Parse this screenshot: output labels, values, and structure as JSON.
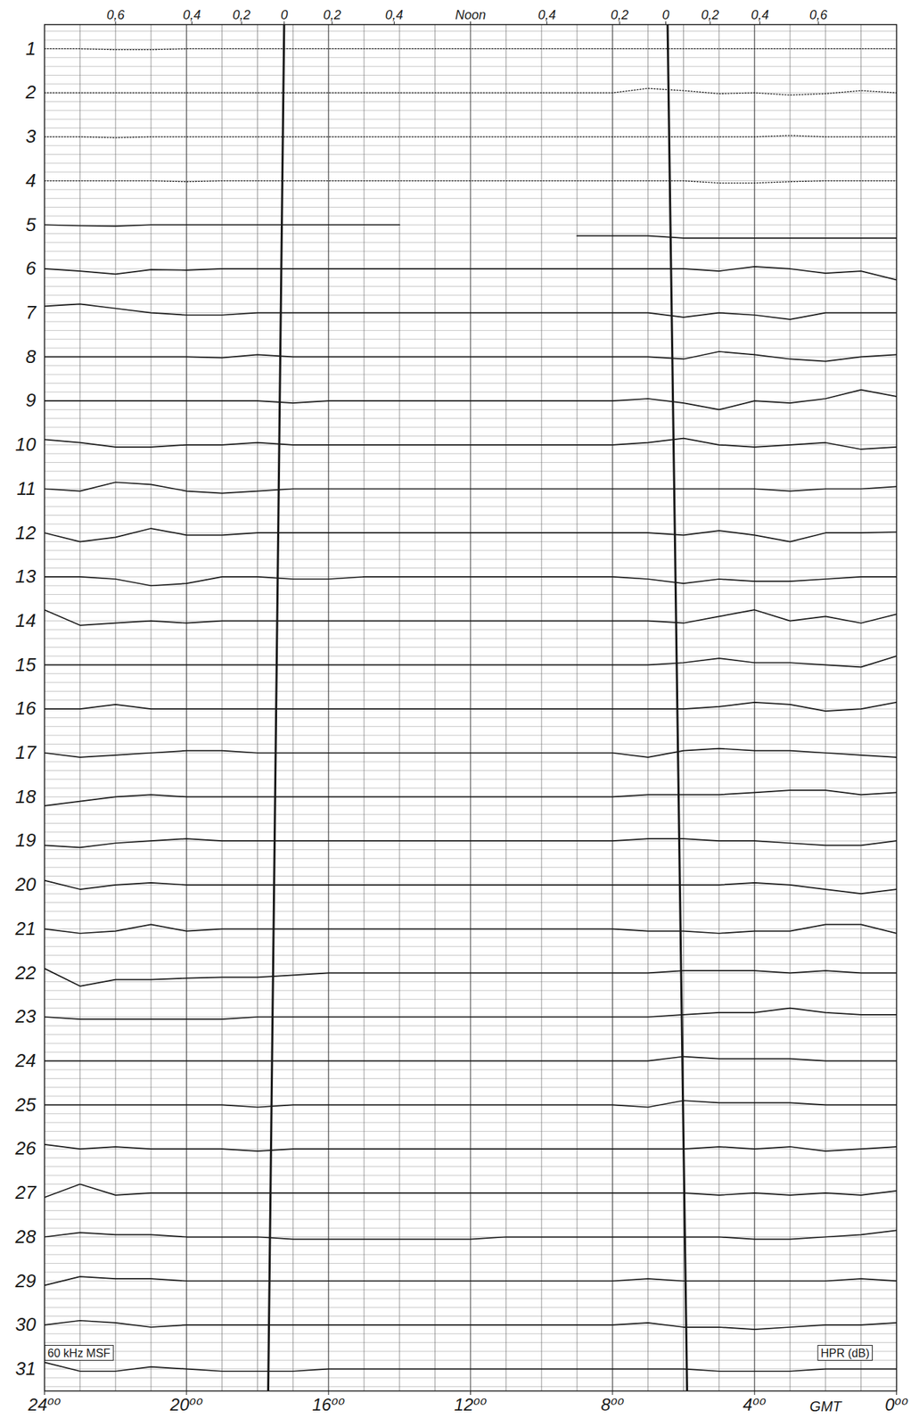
{
  "chart_data": {
    "type": "line",
    "x_label": "GMT",
    "color": "#1a1a1a",
    "grid": true,
    "xlim": [
      24,
      0
    ],
    "xticks": [
      {
        "value": 24,
        "label": "24⁰⁰"
      },
      {
        "value": 20,
        "label": "20⁰⁰"
      },
      {
        "value": 16,
        "label": "16⁰⁰"
      },
      {
        "value": 12,
        "label": "12⁰⁰"
      },
      {
        "value": 8,
        "label": "8⁰⁰"
      },
      {
        "value": 4,
        "label": "4⁰⁰"
      },
      {
        "value": 0,
        "label": "0⁰⁰"
      }
    ],
    "x2ticks": [
      {
        "value": 22.0,
        "label": "0,6"
      },
      {
        "value": 19.85,
        "label": "0,4"
      },
      {
        "value": 18.45,
        "label": "0,2"
      },
      {
        "value": 17.25,
        "label": "0"
      },
      {
        "value": 15.9,
        "label": "0,2"
      },
      {
        "value": 14.15,
        "label": "0,4"
      },
      {
        "value": 12.0,
        "label": "Noon"
      },
      {
        "value": 9.85,
        "label": "0,4"
      },
      {
        "value": 7.8,
        "label": "0,2"
      },
      {
        "value": 6.5,
        "label": "0"
      },
      {
        "value": 5.25,
        "label": "0,2"
      },
      {
        "value": 3.85,
        "label": "0,4"
      },
      {
        "value": 2.2,
        "label": "0,6"
      }
    ],
    "ylim": [
      31.5,
      0.45
    ],
    "yticks": [
      1,
      2,
      3,
      4,
      5,
      6,
      7,
      8,
      9,
      10,
      11,
      12,
      13,
      14,
      15,
      16,
      17,
      18,
      19,
      20,
      21,
      22,
      23,
      24,
      25,
      26,
      27,
      28,
      29,
      30,
      31
    ],
    "terminators": [
      {
        "x": [
          17.25,
          17.7
        ],
        "y": [
          0.45,
          31.5
        ]
      },
      {
        "x": [
          6.45,
          5.9
        ],
        "y": [
          0.45,
          31.5
        ]
      }
    ],
    "annotations": [
      {
        "text": "60 kHz MSF",
        "x": 23.03,
        "y": 30.64
      },
      {
        "text": "HPR (dB)",
        "x": 1.45,
        "y": 30.64
      }
    ],
    "x": [
      24,
      23,
      22,
      21,
      20,
      19,
      18,
      17,
      16,
      15,
      14,
      13,
      12,
      11,
      10,
      9,
      8,
      7,
      6,
      5,
      4,
      3,
      2,
      1,
      0
    ],
    "series": [
      {
        "name": "1",
        "color": "#1a1a1a",
        "line_style": "dotted",
        "values": [
          1,
          1,
          1.02,
          1.02,
          1,
          1,
          1,
          1,
          1,
          1,
          1,
          1,
          1,
          1,
          1,
          1,
          1,
          1,
          1,
          1,
          1,
          1,
          1,
          1,
          1
        ]
      },
      {
        "name": "2",
        "color": "#1a1a1a",
        "line_style": "dotted",
        "values": [
          2,
          2,
          2,
          2,
          2,
          2,
          2,
          2,
          2,
          2,
          2,
          2,
          2,
          2,
          2,
          2,
          2,
          1.9,
          1.95,
          2.02,
          2,
          2.05,
          2.02,
          1.95,
          2
        ]
      },
      {
        "name": "3",
        "color": "#1a1a1a",
        "line_style": "dotted",
        "values": [
          3,
          3,
          3.02,
          3,
          3,
          3,
          3,
          3,
          3,
          3,
          3,
          3,
          3,
          3,
          3,
          3,
          3,
          3,
          3,
          3,
          3,
          2.97,
          3,
          3,
          3
        ]
      },
      {
        "name": "4",
        "color": "#1a1a1a",
        "line_style": "dotted",
        "values": [
          4,
          4,
          4,
          4,
          4.02,
          4,
          4,
          4,
          4,
          4,
          4,
          4,
          4,
          4,
          4,
          4,
          4,
          4,
          4,
          4.05,
          4.05,
          4.02,
          4,
          4,
          4
        ]
      },
      {
        "name": "5",
        "color": "#1a1a1a",
        "line_style": "solid",
        "values": [
          5,
          5.02,
          5.03,
          5,
          5,
          5,
          5,
          5,
          5,
          5,
          5,
          null,
          null,
          null,
          null,
          5.25,
          5.25,
          5.25,
          5.3,
          5.3,
          5.3,
          5.3,
          5.3,
          5.3,
          5.3
        ]
      },
      {
        "name": "6",
        "color": "#1a1a1a",
        "line_style": "solid",
        "values": [
          6,
          6.05,
          6.12,
          6.02,
          6.03,
          6,
          6,
          6,
          6,
          6,
          6,
          6,
          6,
          6,
          6,
          6,
          6,
          6,
          6,
          6.05,
          5.95,
          6,
          6.1,
          6.05,
          6.25
        ]
      },
      {
        "name": "7",
        "color": "#1a1a1a",
        "line_style": "solid",
        "values": [
          6.85,
          6.8,
          6.9,
          7,
          7.05,
          7.05,
          7,
          7,
          7,
          7,
          7,
          7,
          7,
          7,
          7,
          7,
          7,
          7,
          7.1,
          7,
          7.05,
          7.15,
          7,
          7,
          7
        ]
      },
      {
        "name": "8",
        "color": "#1a1a1a",
        "line_style": "solid",
        "values": [
          8,
          8,
          8,
          8,
          8,
          8.02,
          7.95,
          8,
          8,
          8,
          8,
          8,
          8,
          8,
          8,
          8,
          8,
          8,
          8.05,
          7.88,
          7.95,
          8.05,
          8.1,
          8,
          7.95
        ]
      },
      {
        "name": "9",
        "color": "#1a1a1a",
        "line_style": "solid",
        "values": [
          9,
          9,
          9,
          9,
          9,
          9,
          9,
          9.05,
          9,
          9,
          9,
          9,
          9,
          9,
          9,
          9,
          9,
          8.95,
          9.05,
          9.2,
          9,
          9.05,
          8.95,
          8.75,
          8.9
        ]
      },
      {
        "name": "10",
        "color": "#1a1a1a",
        "line_style": "solid",
        "values": [
          9.88,
          9.95,
          10.05,
          10.05,
          10,
          10,
          9.95,
          10,
          10,
          10,
          10,
          10,
          10,
          10,
          10,
          10,
          10,
          9.95,
          9.85,
          10,
          10.05,
          10,
          9.95,
          10.1,
          10.05
        ]
      },
      {
        "name": "11",
        "color": "#1a1a1a",
        "line_style": "solid",
        "values": [
          11,
          11.05,
          10.85,
          10.9,
          11.05,
          11.1,
          11.05,
          11,
          11,
          11,
          11,
          11,
          11,
          11,
          11,
          11,
          11,
          11,
          11,
          11,
          11,
          11.05,
          11,
          11,
          10.95
        ]
      },
      {
        "name": "12",
        "color": "#1a1a1a",
        "line_style": "solid",
        "values": [
          12,
          12.2,
          12.1,
          11.9,
          12.05,
          12.05,
          12,
          12,
          12,
          12,
          12,
          12,
          12,
          12,
          12,
          12,
          12,
          12,
          12.05,
          11.95,
          12.05,
          12.2,
          12,
          12,
          11.98
        ]
      },
      {
        "name": "13",
        "color": "#1a1a1a",
        "line_style": "solid",
        "values": [
          13,
          13,
          13.05,
          13.2,
          13.15,
          13,
          13,
          13.05,
          13.05,
          13,
          13,
          13,
          13,
          13,
          13,
          13,
          13,
          13.05,
          13.15,
          13.05,
          13.1,
          13.1,
          13.05,
          13,
          13
        ]
      },
      {
        "name": "14",
        "color": "#1a1a1a",
        "line_style": "solid",
        "values": [
          13.75,
          14.1,
          14.05,
          14,
          14.05,
          14,
          14,
          14,
          14,
          14,
          14,
          14,
          14,
          14,
          14,
          14,
          14,
          14,
          14.05,
          13.9,
          13.75,
          14,
          13.9,
          14.05,
          13.85
        ]
      },
      {
        "name": "15",
        "color": "#1a1a1a",
        "line_style": "solid",
        "values": [
          15,
          15,
          15,
          15,
          15,
          15,
          15,
          15,
          15,
          15,
          15,
          15,
          15,
          15,
          15,
          15,
          15,
          15,
          14.95,
          14.85,
          14.95,
          14.95,
          15,
          15.05,
          14.8
        ]
      },
      {
        "name": "16",
        "color": "#1a1a1a",
        "line_style": "solid",
        "values": [
          16,
          16,
          15.9,
          16,
          16,
          16,
          16,
          16,
          16,
          16,
          16,
          16,
          16,
          16,
          16,
          16,
          16,
          16,
          16,
          15.95,
          15.85,
          15.9,
          16.05,
          16,
          15.85
        ]
      },
      {
        "name": "17",
        "color": "#1a1a1a",
        "line_style": "solid",
        "values": [
          17,
          17.1,
          17.05,
          17,
          16.95,
          16.95,
          17,
          17,
          17,
          17,
          17,
          17,
          17,
          17,
          17,
          17,
          17,
          17.1,
          16.95,
          16.9,
          16.95,
          16.95,
          17,
          17.05,
          17.1
        ]
      },
      {
        "name": "18",
        "color": "#1a1a1a",
        "line_style": "solid",
        "values": [
          18.2,
          18.1,
          18,
          17.95,
          18,
          18,
          18,
          18,
          18,
          18,
          18,
          18,
          18,
          18,
          18,
          18,
          18,
          17.95,
          17.95,
          17.95,
          17.9,
          17.85,
          17.85,
          17.95,
          17.9
        ]
      },
      {
        "name": "19",
        "color": "#1a1a1a",
        "line_style": "solid",
        "values": [
          19.1,
          19.15,
          19.05,
          19,
          18.95,
          19,
          19,
          19,
          19,
          19,
          19,
          19,
          19,
          19,
          19,
          19,
          19,
          18.95,
          18.95,
          19,
          19,
          19.05,
          19.1,
          19.1,
          19
        ]
      },
      {
        "name": "20",
        "color": "#1a1a1a",
        "line_style": "solid",
        "values": [
          19.9,
          20.1,
          20,
          19.95,
          20,
          20,
          20,
          20,
          20,
          20,
          20,
          20,
          20,
          20,
          20,
          20,
          20,
          20,
          20,
          20,
          19.95,
          20,
          20.1,
          20.2,
          20.1
        ]
      },
      {
        "name": "21",
        "color": "#1a1a1a",
        "line_style": "solid",
        "values": [
          21,
          21.1,
          21.05,
          20.9,
          21.05,
          21,
          21,
          21,
          21,
          21,
          21,
          21,
          21,
          21,
          21,
          21,
          21,
          21.05,
          21.05,
          21.1,
          21.05,
          21.05,
          20.9,
          20.9,
          21.1
        ]
      },
      {
        "name": "22",
        "color": "#1a1a1a",
        "line_style": "solid",
        "values": [
          21.9,
          22.3,
          22.15,
          22.15,
          22.12,
          22.1,
          22.1,
          22.05,
          22,
          22,
          22,
          22,
          22,
          22,
          22,
          22,
          22,
          22,
          21.95,
          21.95,
          21.95,
          22,
          21.95,
          22,
          22
        ]
      },
      {
        "name": "23",
        "color": "#1a1a1a",
        "line_style": "solid",
        "values": [
          23,
          23.05,
          23.05,
          23.05,
          23.05,
          23.05,
          23,
          23,
          23,
          23,
          23,
          23,
          23,
          23,
          23,
          23,
          23,
          23,
          22.95,
          22.9,
          22.9,
          22.8,
          22.9,
          22.95,
          22.95
        ]
      },
      {
        "name": "24",
        "color": "#1a1a1a",
        "line_style": "solid",
        "values": [
          24,
          24,
          24,
          24,
          24,
          24,
          24,
          24,
          24,
          24,
          24,
          24,
          24,
          24,
          24,
          24,
          24,
          24,
          23.9,
          23.95,
          23.95,
          23.95,
          24,
          24,
          24
        ]
      },
      {
        "name": "25",
        "color": "#1a1a1a",
        "line_style": "solid",
        "values": [
          25,
          25,
          25,
          25,
          25,
          25,
          25.05,
          25,
          25,
          25,
          25,
          25,
          25,
          25,
          25,
          25,
          25,
          25.05,
          24.9,
          24.95,
          24.95,
          24.95,
          25,
          25,
          25
        ]
      },
      {
        "name": "26",
        "color": "#1a1a1a",
        "line_style": "solid",
        "values": [
          25.9,
          26,
          25.95,
          26,
          26,
          26,
          26.05,
          26,
          26,
          26,
          26,
          26,
          26,
          26,
          26,
          26,
          26,
          26,
          26,
          25.95,
          26,
          25.95,
          26.05,
          26,
          25.95
        ]
      },
      {
        "name": "27",
        "color": "#1a1a1a",
        "line_style": "solid",
        "values": [
          27.1,
          26.8,
          27.05,
          27,
          27,
          27,
          27,
          27,
          27,
          27,
          27,
          27,
          27,
          27,
          27,
          27,
          27,
          27,
          27,
          27.05,
          27,
          27.05,
          27,
          27.05,
          26.95
        ]
      },
      {
        "name": "28",
        "color": "#1a1a1a",
        "line_style": "solid",
        "values": [
          28,
          27.9,
          27.95,
          27.95,
          28,
          28,
          28,
          28.05,
          28.05,
          28.05,
          28.05,
          28.05,
          28.05,
          28,
          28,
          28,
          28,
          28,
          28,
          28,
          28.05,
          28.05,
          28,
          27.95,
          27.85
        ]
      },
      {
        "name": "29",
        "color": "#1a1a1a",
        "line_style": "solid",
        "values": [
          29.1,
          28.9,
          28.95,
          28.95,
          29,
          29,
          29,
          29,
          29,
          29,
          29,
          29,
          29,
          29,
          29,
          29,
          29,
          28.95,
          29,
          29,
          29,
          29,
          29,
          28.95,
          29
        ]
      },
      {
        "name": "30",
        "color": "#1a1a1a",
        "line_style": "solid",
        "values": [
          30,
          29.9,
          29.95,
          30.05,
          30,
          30,
          30,
          30,
          30,
          30,
          30,
          30,
          30,
          30,
          30,
          30,
          30,
          29.95,
          30.05,
          30.05,
          30.1,
          30.05,
          30,
          30,
          29.95
        ]
      },
      {
        "name": "31",
        "color": "#1a1a1a",
        "line_style": "solid",
        "values": [
          30.85,
          31.05,
          31.05,
          30.95,
          31,
          31.05,
          31.05,
          31.05,
          31,
          31,
          31,
          31,
          31,
          31,
          31,
          31,
          31,
          31,
          31,
          31.05,
          31.05,
          31.05,
          31,
          31,
          31
        ]
      }
    ]
  }
}
